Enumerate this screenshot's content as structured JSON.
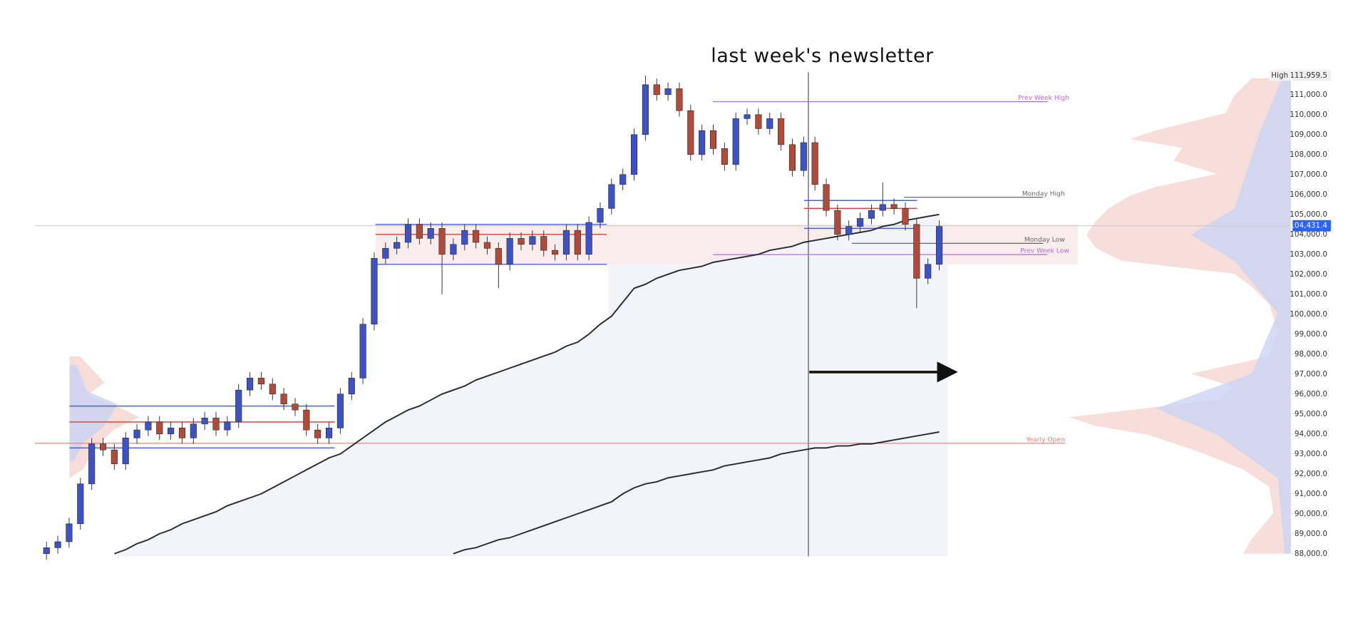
{
  "chart_data": {
    "type": "candlestick",
    "title": "last week's newsletter",
    "up_color": "#3d52c6",
    "down_color": "#b24a3c",
    "ylim": [
      87870,
      112260
    ],
    "grid": false,
    "yticks": [
      {
        "value": 88000,
        "label": "88,000.0"
      },
      {
        "value": 89000,
        "label": "89,000.0"
      },
      {
        "value": 90000,
        "label": "90,000.0"
      },
      {
        "value": 91000,
        "label": "91,000.0"
      },
      {
        "value": 92000,
        "label": "92,000.0"
      },
      {
        "value": 93000,
        "label": "93,000.0"
      },
      {
        "value": 94000,
        "label": "94,000.0"
      },
      {
        "value": 95000,
        "label": "95,000.0"
      },
      {
        "value": 96000,
        "label": "96,000.0"
      },
      {
        "value": 97000,
        "label": "97,000.0"
      },
      {
        "value": 98000,
        "label": "98,000.0"
      },
      {
        "value": 99000,
        "label": "99,000.0"
      },
      {
        "value": 100000,
        "label": "100,000.0"
      },
      {
        "value": 101000,
        "label": "101,000.0"
      },
      {
        "value": 102000,
        "label": "102,000.0"
      },
      {
        "value": 103000,
        "label": "103,000.0"
      },
      {
        "value": 104000,
        "label": "104,000.0"
      },
      {
        "value": 105000,
        "label": "105,000.0"
      },
      {
        "value": 106000,
        "label": "106,000.0"
      },
      {
        "value": 107000,
        "label": "107,000.0"
      },
      {
        "value": 108000,
        "label": "108,000.0"
      },
      {
        "value": 109000,
        "label": "109,000.0"
      },
      {
        "value": 110000,
        "label": "110,000.0"
      },
      {
        "value": 111000,
        "label": "111,000.0"
      }
    ],
    "open": [
      88000,
      88300,
      88600,
      89500,
      91500,
      93500,
      93200,
      92500,
      93800,
      94200,
      94600,
      94000,
      94300,
      93800,
      94500,
      94800,
      94200,
      94600,
      96200,
      96800,
      96500,
      96000,
      95500,
      95200,
      94200,
      93800,
      94300,
      96000,
      96800,
      99500,
      102800,
      103300,
      103600,
      104500,
      103800,
      104300,
      103000,
      103500,
      104200,
      103600,
      103300,
      102500,
      103800,
      103500,
      103900,
      103200,
      103000,
      104200,
      103000,
      104600,
      105300,
      106500,
      107000,
      109000,
      111500,
      111000,
      111300,
      110200,
      108000,
      109200,
      108300,
      107500,
      109800,
      110000,
      109300,
      109800,
      108500,
      107200,
      108600,
      106500,
      105200,
      104000,
      104400,
      104800,
      105200,
      105500,
      105300,
      104500,
      101800,
      102500
    ],
    "high": [
      88600,
      88900,
      89800,
      91800,
      93800,
      93800,
      93500,
      94100,
      94500,
      94900,
      94900,
      94600,
      94600,
      94800,
      95100,
      95100,
      94900,
      96500,
      97100,
      97100,
      96800,
      96300,
      95800,
      95500,
      94500,
      94600,
      96300,
      97100,
      99800,
      103100,
      103600,
      103900,
      104800,
      104800,
      104600,
      104600,
      103800,
      104500,
      104500,
      103900,
      103600,
      104100,
      104100,
      104200,
      104200,
      103500,
      104500,
      104500,
      104900,
      105600,
      106800,
      107300,
      109300,
      111959.5,
      111800,
      111600,
      111600,
      110500,
      109500,
      109500,
      108600,
      110100,
      110300,
      110300,
      110100,
      110100,
      108800,
      108900,
      108900,
      106800,
      105500,
      104700,
      105100,
      105500,
      106600,
      105800,
      105600,
      104800,
      102800,
      104700
    ],
    "low": [
      87700,
      88000,
      88300,
      89200,
      91200,
      92900,
      92200,
      92200,
      93500,
      93900,
      93700,
      93700,
      93500,
      93500,
      94200,
      93900,
      93900,
      94300,
      95900,
      96200,
      95700,
      95200,
      94900,
      93900,
      93500,
      93500,
      94000,
      95700,
      96500,
      99200,
      102500,
      103000,
      103300,
      103500,
      103500,
      101000,
      102700,
      103200,
      103300,
      103000,
      101300,
      102200,
      103200,
      103200,
      102900,
      102700,
      102700,
      102700,
      102700,
      104300,
      105000,
      106200,
      106700,
      108700,
      110700,
      110700,
      109900,
      107700,
      107700,
      108000,
      107200,
      107200,
      109500,
      109000,
      109000,
      108200,
      106900,
      106900,
      106200,
      104900,
      103700,
      103700,
      104100,
      104500,
      104900,
      105000,
      104200,
      100300,
      101500,
      102200
    ],
    "close": [
      88300,
      88600,
      89500,
      91500,
      93500,
      93200,
      92500,
      93800,
      94200,
      94600,
      94000,
      94300,
      93800,
      94500,
      94800,
      94200,
      94600,
      96200,
      96800,
      96500,
      96000,
      95500,
      95200,
      94200,
      93800,
      94300,
      96000,
      96800,
      99500,
      102800,
      103300,
      103600,
      104500,
      103800,
      104300,
      103000,
      103500,
      104200,
      103600,
      103300,
      102500,
      103800,
      103500,
      103900,
      103200,
      103000,
      104200,
      103000,
      104600,
      105300,
      106500,
      107000,
      109000,
      111500,
      111000,
      111300,
      110200,
      108000,
      109200,
      108300,
      107500,
      109800,
      110000,
      109300,
      109800,
      108500,
      107200,
      108600,
      106500,
      105200,
      104000,
      104400,
      104800,
      105200,
      105500,
      105300,
      104500,
      101800,
      102500,
      104400
    ],
    "ma_series": [
      {
        "color": "#2b2b2b",
        "values": [
          null,
          null,
          null,
          null,
          null,
          null,
          88000,
          88200,
          88500,
          88700,
          89000,
          89200,
          89500,
          89700,
          89900,
          90100,
          90400,
          90600,
          90800,
          91000,
          91300,
          91600,
          91900,
          92200,
          92500,
          92800,
          93000,
          93400,
          93800,
          94200,
          94600,
          94900,
          95200,
          95400,
          95700,
          96000,
          96200,
          96400,
          96700,
          96900,
          97100,
          97300,
          97500,
          97700,
          97900,
          98100,
          98400,
          98600,
          99000,
          99500,
          99900,
          100600,
          101300,
          101500,
          101800,
          102000,
          102200,
          102300,
          102400,
          102600,
          102700,
          102800,
          102900,
          103000,
          103200,
          103300,
          103400,
          103600,
          103700,
          103800,
          103900,
          104000,
          104100,
          104200,
          104400,
          104500,
          104700,
          104800,
          104900,
          105000
        ]
      },
      {
        "color": "#2b2b2b",
        "values": [
          null,
          null,
          null,
          null,
          null,
          null,
          null,
          null,
          null,
          null,
          null,
          null,
          null,
          null,
          null,
          null,
          null,
          null,
          null,
          null,
          null,
          null,
          null,
          null,
          null,
          null,
          null,
          null,
          null,
          null,
          null,
          null,
          null,
          null,
          null,
          null,
          88000,
          88200,
          88300,
          88500,
          88700,
          88800,
          89000,
          89200,
          89400,
          89600,
          89800,
          90000,
          90200,
          90400,
          90600,
          91000,
          91300,
          91500,
          91600,
          91800,
          91900,
          92000,
          92100,
          92200,
          92400,
          92500,
          92600,
          92700,
          92800,
          93000,
          93100,
          93200,
          93300,
          93300,
          93400,
          93400,
          93500,
          93500,
          93600,
          93700,
          93800,
          93900,
          94000,
          94100
        ]
      }
    ],
    "ranges": [
      {
        "high": 95400,
        "mid": 94600,
        "low": 93300
      },
      {
        "high": 104500,
        "mid": 104000,
        "low": 102500
      },
      {
        "high": 105700,
        "mid": 105300,
        "low": 104300
      }
    ],
    "range_colors": {
      "edge": "#4a62d8",
      "mid": "#d0483a"
    },
    "levels": [
      {
        "name": "Prev Week High",
        "value": 110650,
        "color": "#b36bd6"
      },
      {
        "name": "Monday High",
        "value": 105860,
        "color": "#666666"
      },
      {
        "name": "Monday Low",
        "value": 103550,
        "color": "#666666"
      },
      {
        "name": "Prev Week Low",
        "value": 102990,
        "color": "#b36bd6"
      },
      {
        "name": "Yearly Open",
        "value": 93535,
        "color": "#e77a6e"
      }
    ],
    "high_marker": {
      "label": "High",
      "value": 111959.5,
      "value_label": "111,959.5"
    },
    "last_price": {
      "value": 104431.4,
      "value_label": "104,431.4",
      "color": "#2962ff"
    }
  }
}
